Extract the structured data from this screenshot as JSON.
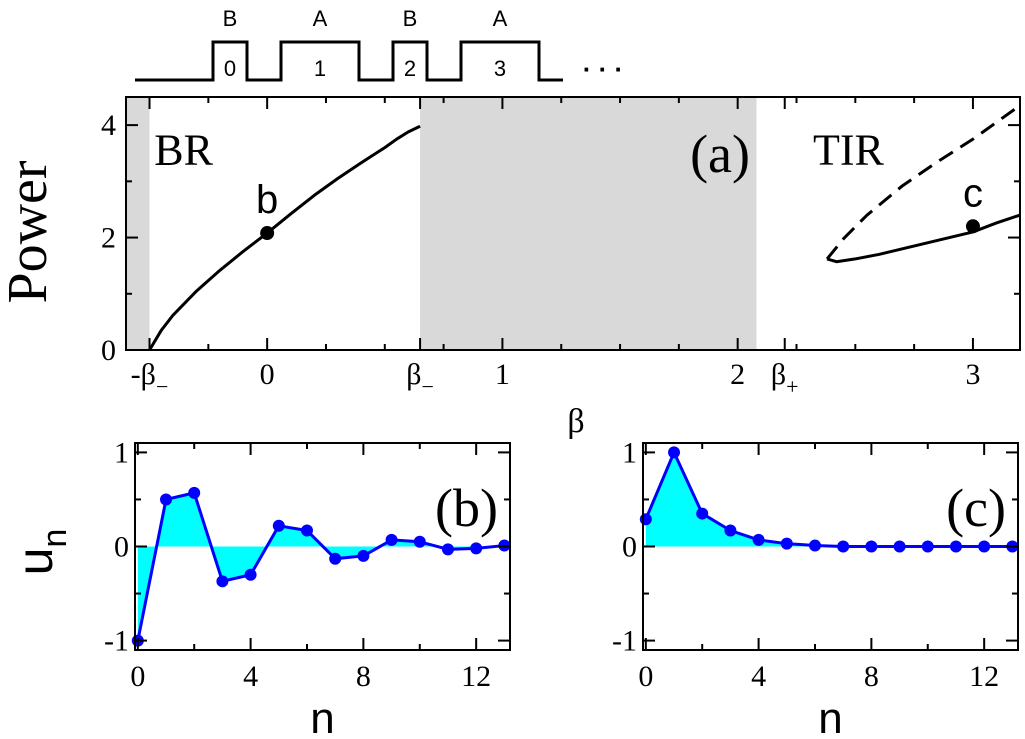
{
  "schematic": {
    "layers": [
      {
        "name": "B",
        "index": "0",
        "kind": "B"
      },
      {
        "name": "A",
        "index": "1",
        "kind": "A"
      },
      {
        "name": "B",
        "index": "2",
        "kind": "B"
      },
      {
        "name": "A",
        "index": "3",
        "kind": "A"
      }
    ],
    "ellipsis": "· · ·"
  },
  "chart_data": [
    {
      "type": "line",
      "panel_label": "(a)",
      "xlabel": "β",
      "ylabel": "Power",
      "xlim": [
        -0.6,
        3.2
      ],
      "ylim": [
        0,
        4.5
      ],
      "xticks": [
        {
          "value": -0.5,
          "label": "-β",
          "sub": "−"
        },
        {
          "value": 0,
          "label": "0"
        },
        {
          "value": 0.65,
          "label": "β",
          "sub": "−"
        },
        {
          "value": 1,
          "label": "1"
        },
        {
          "value": 2,
          "label": "2"
        },
        {
          "value": 2.2,
          "label": "β",
          "sub": "+"
        },
        {
          "value": 3,
          "label": "3"
        }
      ],
      "yticks": [
        0,
        2,
        4
      ],
      "gaps": [
        [
          -0.6,
          -0.5
        ],
        [
          0.65,
          2.08
        ]
      ],
      "region_labels": [
        {
          "text": "BR",
          "x": -0.48,
          "y": 3.3
        },
        {
          "text": "TIR",
          "x": 2.32,
          "y": 3.3
        }
      ],
      "series": [
        {
          "style": "solid",
          "x": [
            -0.5,
            -0.45,
            -0.4,
            -0.3,
            -0.2,
            -0.1,
            0,
            0.1,
            0.2,
            0.3,
            0.4,
            0.5,
            0.55,
            0.6,
            0.65
          ],
          "y": [
            0,
            0.35,
            0.62,
            1.05,
            1.42,
            1.76,
            2.08,
            2.42,
            2.75,
            3.05,
            3.33,
            3.6,
            3.75,
            3.88,
            3.98
          ]
        },
        {
          "style": "dashed",
          "x": [
            2.38,
            2.45,
            2.55,
            2.7,
            2.85,
            3.0,
            3.1,
            3.2
          ],
          "y": [
            1.62,
            1.98,
            2.4,
            2.92,
            3.35,
            3.75,
            4.05,
            4.35
          ]
        },
        {
          "style": "solid",
          "x": [
            2.38,
            2.42,
            2.5,
            2.6,
            2.7,
            2.8,
            2.9,
            3.0,
            3.1,
            3.2
          ],
          "y": [
            1.62,
            1.57,
            1.62,
            1.7,
            1.8,
            1.9,
            2.0,
            2.1,
            2.26,
            2.4
          ]
        }
      ],
      "points": [
        {
          "label": "b",
          "x": 0,
          "y": 2.08
        },
        {
          "label": "c",
          "x": 3,
          "y": 2.2
        }
      ]
    },
    {
      "type": "line",
      "panel_label": "(b)",
      "xlabel": "n",
      "ylabel": "u",
      "ylabel_sub": "n",
      "xlim": [
        -0.1,
        13.2
      ],
      "ylim": [
        -1.1,
        1.1
      ],
      "xticks": [
        0,
        4,
        8,
        12
      ],
      "yticks": [
        -1,
        0,
        1
      ],
      "x": [
        0,
        1,
        2,
        3,
        4,
        5,
        6,
        7,
        8,
        9,
        10,
        11,
        12,
        13
      ],
      "values": [
        -1.0,
        0.5,
        0.57,
        -0.37,
        -0.3,
        0.22,
        0.17,
        -0.13,
        -0.1,
        0.07,
        0.05,
        -0.03,
        -0.02,
        0.01
      ],
      "fill": "#00ffff",
      "line_color": "#0000ff"
    },
    {
      "type": "line",
      "panel_label": "(c)",
      "xlabel": "n",
      "xlim": [
        -0.1,
        13.2
      ],
      "ylim": [
        -1.1,
        1.1
      ],
      "xticks": [
        0,
        4,
        8,
        12
      ],
      "yticks": [
        -1,
        0,
        1
      ],
      "x": [
        0,
        1,
        2,
        3,
        4,
        5,
        6,
        7,
        8,
        9,
        10,
        11,
        12,
        13
      ],
      "values": [
        0.29,
        1.0,
        0.35,
        0.17,
        0.07,
        0.03,
        0.01,
        0.0,
        0.0,
        0.0,
        0.0,
        0.0,
        0.0,
        0.0
      ],
      "fill": "#00ffff",
      "line_color": "#0000ff"
    }
  ],
  "colors": {
    "gap": "#d9d9d9",
    "line": "#000000",
    "fill": "#00ffff",
    "marker": "#0000ff"
  }
}
